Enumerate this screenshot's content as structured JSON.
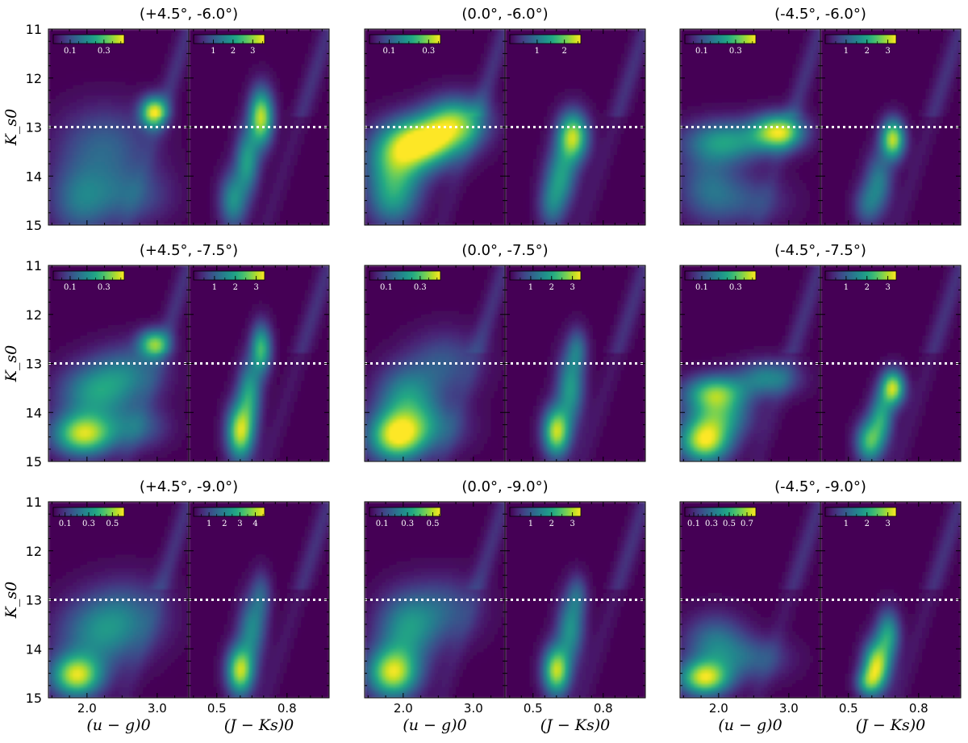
{
  "chart_data": {
    "type": "heatmap",
    "description_free": true,
    "colormap": "viridis",
    "y_axis": {
      "label": "K_s0",
      "range": [
        11,
        15
      ],
      "inverted": true,
      "tick_labels": [
        "11",
        "12",
        "13",
        "14",
        "15"
      ],
      "reference_line": 13
    },
    "x_axes": {
      "left": {
        "label": "(u − g)0",
        "range": [
          1.45,
          3.45
        ],
        "tick_labels": [
          "2.0",
          "3.0"
        ]
      },
      "right": {
        "label": "(J − Ks)0",
        "range": [
          0.38,
          0.98
        ],
        "tick_labels": [
          "0.5",
          "0.8"
        ]
      }
    },
    "panels": [
      {
        "title": "(+4.5°, -6.0°)",
        "left": {
          "cbar_ticks": [
            "0.1",
            "0.3"
          ],
          "cbar_max": 0.42,
          "blobs": [
            [
              2.95,
              12.7,
              0.13,
              0.22,
              1.0
            ],
            [
              2.25,
              13.4,
              0.45,
              0.55,
              0.35
            ],
            [
              1.9,
              14.5,
              0.3,
              0.5,
              0.4
            ],
            [
              2.6,
              14.4,
              0.4,
              0.4,
              0.3
            ]
          ]
        },
        "right": {
          "cbar_ticks": [
            "1",
            "2",
            "3"
          ],
          "cbar_max": 3.6,
          "blobs": [
            [
              0.69,
              12.8,
              0.035,
              0.4,
              1.0
            ],
            [
              0.63,
              13.7,
              0.035,
              0.45,
              0.6
            ],
            [
              0.57,
              14.5,
              0.04,
              0.4,
              0.55
            ]
          ]
        }
      },
      {
        "title": "(0.0°, -6.0°)",
        "left": {
          "cbar_ticks": [
            "0.1",
            "0.3"
          ],
          "cbar_max": 0.36,
          "blobs": [
            [
              2.3,
              13.3,
              0.35,
              0.35,
              1.0
            ],
            [
              2.75,
              12.9,
              0.3,
              0.35,
              0.8
            ],
            [
              1.9,
              13.7,
              0.3,
              0.45,
              0.7
            ],
            [
              1.85,
              14.5,
              0.25,
              0.4,
              0.5
            ]
          ]
        },
        "right": {
          "cbar_ticks": [
            "1",
            "2"
          ],
          "cbar_max": 2.6,
          "blobs": [
            [
              0.67,
              13.2,
              0.045,
              0.35,
              1.0
            ],
            [
              0.62,
              14.0,
              0.045,
              0.4,
              0.55
            ],
            [
              0.58,
              14.6,
              0.04,
              0.35,
              0.4
            ]
          ]
        }
      },
      {
        "title": "(-4.5°, -6.0°)",
        "left": {
          "cbar_ticks": [
            "0.1",
            "0.3"
          ],
          "cbar_max": 0.42,
          "blobs": [
            [
              2.85,
              13.1,
              0.25,
              0.25,
              1.0
            ],
            [
              2.1,
              13.3,
              0.4,
              0.3,
              0.6
            ],
            [
              1.85,
              14.2,
              0.3,
              0.5,
              0.35
            ],
            [
              2.4,
              14.5,
              0.4,
              0.35,
              0.25
            ]
          ]
        },
        "right": {
          "cbar_ticks": [
            "1",
            "2",
            "3"
          ],
          "cbar_max": 3.4,
          "blobs": [
            [
              0.69,
              13.25,
              0.035,
              0.28,
              1.0
            ],
            [
              0.63,
              14.1,
              0.04,
              0.4,
              0.45
            ],
            [
              0.58,
              14.6,
              0.04,
              0.3,
              0.35
            ]
          ]
        }
      },
      {
        "title": "(+4.5°, -7.5°)",
        "left": {
          "cbar_ticks": [
            "0.1",
            "0.3"
          ],
          "cbar_max": 0.42,
          "blobs": [
            [
              2.95,
              12.6,
              0.15,
              0.2,
              0.8
            ],
            [
              1.95,
              14.45,
              0.3,
              0.3,
              1.0
            ],
            [
              2.1,
              13.6,
              0.35,
              0.4,
              0.55
            ],
            [
              2.6,
              13.2,
              0.35,
              0.4,
              0.4
            ],
            [
              2.7,
              14.3,
              0.3,
              0.3,
              0.35
            ]
          ]
        },
        "right": {
          "cbar_ticks": [
            "1",
            "2",
            "3"
          ],
          "cbar_max": 3.4,
          "blobs": [
            [
              0.69,
              12.7,
              0.03,
              0.35,
              0.75
            ],
            [
              0.64,
              13.6,
              0.035,
              0.45,
              0.6
            ],
            [
              0.6,
              14.4,
              0.04,
              0.4,
              1.0
            ]
          ]
        }
      },
      {
        "title": "(0.0°, -7.5°)",
        "left": {
          "cbar_ticks": [
            "0.1",
            "0.3"
          ],
          "cbar_max": 0.42,
          "blobs": [
            [
              1.9,
              14.5,
              0.28,
              0.35,
              1.0
            ],
            [
              2.05,
              13.7,
              0.3,
              0.45,
              0.55
            ],
            [
              2.6,
              13.0,
              0.35,
              0.45,
              0.3
            ],
            [
              2.4,
              14.3,
              0.35,
              0.35,
              0.35
            ]
          ]
        },
        "right": {
          "cbar_ticks": [
            "1",
            "2",
            "3"
          ],
          "cbar_max": 3.4,
          "blobs": [
            [
              0.6,
              14.4,
              0.04,
              0.35,
              1.0
            ],
            [
              0.66,
              13.5,
              0.04,
              0.5,
              0.6
            ],
            [
              0.69,
              12.7,
              0.03,
              0.3,
              0.35
            ]
          ]
        }
      },
      {
        "title": "(-4.5°, -7.5°)",
        "left": {
          "cbar_ticks": [
            "0.1",
            "0.3"
          ],
          "cbar_max": 0.42,
          "blobs": [
            [
              1.95,
              13.6,
              0.3,
              0.25,
              0.8
            ],
            [
              1.8,
              14.6,
              0.25,
              0.3,
              1.0
            ],
            [
              2.7,
              13.3,
              0.3,
              0.25,
              0.5
            ],
            [
              2.0,
              14.1,
              0.3,
              0.3,
              0.6
            ]
          ]
        },
        "right": {
          "cbar_ticks": [
            "1",
            "2",
            "3"
          ],
          "cbar_max": 3.4,
          "blobs": [
            [
              0.69,
              13.5,
              0.035,
              0.25,
              1.0
            ],
            [
              0.64,
              14.1,
              0.035,
              0.35,
              0.6
            ],
            [
              0.59,
              14.6,
              0.04,
              0.3,
              0.75
            ]
          ]
        }
      },
      {
        "title": "(+4.5°, -9.0°)",
        "left": {
          "cbar_ticks": [
            "0.1",
            "0.3",
            "0.5"
          ],
          "cbar_max": 0.6,
          "blobs": [
            [
              1.85,
              14.55,
              0.25,
              0.3,
              1.0
            ],
            [
              2.15,
              13.7,
              0.4,
              0.5,
              0.45
            ],
            [
              2.6,
              13.3,
              0.4,
              0.5,
              0.3
            ]
          ]
        },
        "right": {
          "cbar_ticks": [
            "1",
            "2",
            "3",
            "4"
          ],
          "cbar_max": 4.6,
          "blobs": [
            [
              0.6,
              14.45,
              0.04,
              0.35,
              1.0
            ],
            [
              0.65,
              13.6,
              0.04,
              0.45,
              0.5
            ],
            [
              0.69,
              12.9,
              0.03,
              0.35,
              0.3
            ]
          ]
        }
      },
      {
        "title": "(0.0°, -9.0°)",
        "left": {
          "cbar_ticks": [
            "0.1",
            "0.3",
            "0.5"
          ],
          "cbar_max": 0.56,
          "blobs": [
            [
              1.85,
              14.5,
              0.25,
              0.35,
              1.0
            ],
            [
              2.05,
              13.6,
              0.3,
              0.5,
              0.55
            ],
            [
              2.6,
              13.2,
              0.35,
              0.45,
              0.3
            ]
          ]
        },
        "right": {
          "cbar_ticks": [
            "1",
            "2",
            "3"
          ],
          "cbar_max": 3.4,
          "blobs": [
            [
              0.6,
              14.45,
              0.04,
              0.35,
              1.0
            ],
            [
              0.66,
              13.6,
              0.04,
              0.45,
              0.55
            ],
            [
              0.69,
              12.9,
              0.03,
              0.3,
              0.3
            ]
          ]
        }
      },
      {
        "title": "(-4.5°, -9.0°)",
        "left": {
          "cbar_ticks": [
            "0.1",
            "0.3",
            "0.5",
            "0.7"
          ],
          "cbar_max": 0.8,
          "blobs": [
            [
              1.8,
              14.6,
              0.25,
              0.25,
              1.0
            ],
            [
              1.95,
              13.9,
              0.3,
              0.4,
              0.45
            ],
            [
              2.5,
              14.2,
              0.35,
              0.3,
              0.3
            ]
          ]
        },
        "right": {
          "cbar_ticks": [
            "1",
            "2",
            "3"
          ],
          "cbar_max": 3.4,
          "blobs": [
            [
              0.62,
              14.35,
              0.04,
              0.35,
              1.0
            ],
            [
              0.67,
              13.7,
              0.035,
              0.35,
              0.6
            ],
            [
              0.58,
              14.7,
              0.035,
              0.2,
              0.5
            ]
          ]
        }
      }
    ]
  }
}
